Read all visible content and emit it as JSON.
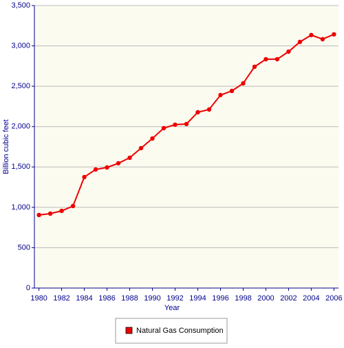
{
  "chart_data": {
    "type": "line",
    "x_label": "Year",
    "y_label": "Billion cubic feet",
    "x": [
      1980,
      1981,
      1982,
      1983,
      1984,
      1985,
      1986,
      1987,
      1988,
      1989,
      1990,
      1991,
      1992,
      1993,
      1994,
      1995,
      1996,
      1997,
      1998,
      1999,
      2000,
      2001,
      2002,
      2003,
      2004,
      2005,
      2006
    ],
    "series": [
      {
        "name": "Natural Gas Consumption",
        "color": "#ee0000",
        "values": [
          905,
          922,
          956,
          1016,
          1375,
          1469,
          1494,
          1546,
          1614,
          1733,
          1853,
          1981,
          2024,
          2032,
          2178,
          2212,
          2391,
          2442,
          2536,
          2741,
          2835,
          2835,
          2929,
          3049,
          3134,
          3083,
          3143
        ]
      }
    ],
    "xlim": [
      1979.6,
      2006.4
    ],
    "xticks": [
      1980,
      1982,
      1984,
      1986,
      1988,
      1990,
      1992,
      1994,
      1996,
      1998,
      2000,
      2002,
      2004,
      2006
    ],
    "ylim": [
      0,
      3500
    ],
    "yticks": [
      0,
      500,
      {
        "value": 1000,
        "label": "1,000"
      },
      {
        "value": 1500,
        "label": "1,500"
      },
      {
        "value": 2000,
        "label": "2,000"
      },
      {
        "value": 2500,
        "label": "2,500"
      },
      {
        "value": 3000,
        "label": "3,000"
      },
      {
        "value": 3500,
        "label": "3,500"
      }
    ],
    "grid": true,
    "legend": "bottom"
  }
}
